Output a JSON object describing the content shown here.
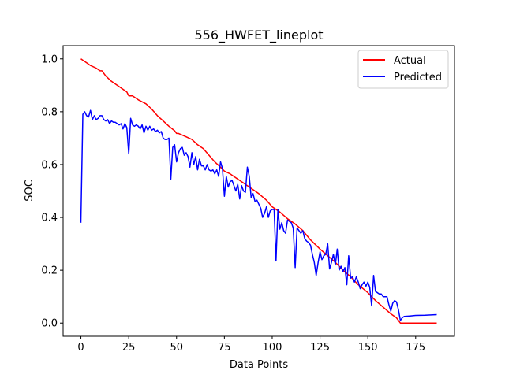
{
  "chart_data": {
    "type": "line",
    "title": "556_HWFET_lineplot",
    "xlabel": "Data Points",
    "ylabel": "SOC",
    "xlim": [
      -9.3,
      195.3
    ],
    "ylim": [
      -0.05,
      1.05
    ],
    "xticks": [
      0,
      25,
      50,
      75,
      100,
      125,
      150,
      175
    ],
    "yticks": [
      0.0,
      0.2,
      0.4,
      0.6,
      0.8,
      1.0
    ],
    "xtick_labels": [
      "0",
      "25",
      "50",
      "75",
      "100",
      "125",
      "150",
      "175"
    ],
    "ytick_labels": [
      "0.0",
      "0.2",
      "0.4",
      "0.6",
      "0.8",
      "1.0"
    ],
    "grid": false,
    "legend_position": "top-right",
    "series": [
      {
        "name": "Actual",
        "color": "#ff0000",
        "points": [
          [
            0,
            1.0
          ],
          [
            3,
            0.985
          ],
          [
            5,
            0.975
          ],
          [
            8,
            0.965
          ],
          [
            10,
            0.955
          ],
          [
            11,
            0.955
          ],
          [
            13,
            0.935
          ],
          [
            16,
            0.915
          ],
          [
            20,
            0.895
          ],
          [
            24,
            0.875
          ],
          [
            25,
            0.86
          ],
          [
            27,
            0.86
          ],
          [
            30,
            0.845
          ],
          [
            34,
            0.83
          ],
          [
            37,
            0.81
          ],
          [
            40,
            0.785
          ],
          [
            43,
            0.765
          ],
          [
            46,
            0.745
          ],
          [
            49,
            0.728
          ],
          [
            50,
            0.718
          ],
          [
            51,
            0.718
          ],
          [
            55,
            0.705
          ],
          [
            58,
            0.695
          ],
          [
            61,
            0.675
          ],
          [
            64,
            0.66
          ],
          [
            67,
            0.635
          ],
          [
            70,
            0.61
          ],
          [
            73,
            0.59
          ],
          [
            75,
            0.575
          ],
          [
            78,
            0.565
          ],
          [
            81,
            0.55
          ],
          [
            85,
            0.53
          ],
          [
            89,
            0.51
          ],
          [
            93,
            0.49
          ],
          [
            97,
            0.465
          ],
          [
            100,
            0.44
          ],
          [
            104,
            0.42
          ],
          [
            108,
            0.395
          ],
          [
            112,
            0.375
          ],
          [
            116,
            0.35
          ],
          [
            120,
            0.315
          ],
          [
            125,
            0.28
          ],
          [
            129,
            0.255
          ],
          [
            133,
            0.23
          ],
          [
            137,
            0.2
          ],
          [
            141,
            0.175
          ],
          [
            145,
            0.145
          ],
          [
            150,
            0.115
          ],
          [
            154,
            0.085
          ],
          [
            158,
            0.06
          ],
          [
            162,
            0.035
          ],
          [
            165,
            0.02
          ],
          [
            167,
            0.0
          ],
          [
            186,
            0.0
          ]
        ]
      },
      {
        "name": "Predicted",
        "color": "#0000ff",
        "points": [
          [
            0,
            0.38
          ],
          [
            1,
            0.79
          ],
          [
            2,
            0.8
          ],
          [
            3,
            0.785
          ],
          [
            4,
            0.78
          ],
          [
            5,
            0.805
          ],
          [
            6,
            0.77
          ],
          [
            7,
            0.785
          ],
          [
            8,
            0.77
          ],
          [
            9,
            0.775
          ],
          [
            10,
            0.785
          ],
          [
            11,
            0.785
          ],
          [
            12,
            0.77
          ],
          [
            13,
            0.765
          ],
          [
            14,
            0.77
          ],
          [
            15,
            0.755
          ],
          [
            16,
            0.765
          ],
          [
            17,
            0.76
          ],
          [
            18,
            0.76
          ],
          [
            19,
            0.755
          ],
          [
            20,
            0.75
          ],
          [
            21,
            0.755
          ],
          [
            22,
            0.735
          ],
          [
            23,
            0.755
          ],
          [
            24,
            0.74
          ],
          [
            25,
            0.64
          ],
          [
            26,
            0.775
          ],
          [
            27,
            0.75
          ],
          [
            28,
            0.745
          ],
          [
            29,
            0.75
          ],
          [
            30,
            0.745
          ],
          [
            31,
            0.735
          ],
          [
            32,
            0.75
          ],
          [
            33,
            0.72
          ],
          [
            34,
            0.745
          ],
          [
            35,
            0.73
          ],
          [
            36,
            0.745
          ],
          [
            37,
            0.73
          ],
          [
            38,
            0.735
          ],
          [
            39,
            0.725
          ],
          [
            40,
            0.73
          ],
          [
            41,
            0.72
          ],
          [
            42,
            0.725
          ],
          [
            43,
            0.7
          ],
          [
            44,
            0.695
          ],
          [
            45,
            0.695
          ],
          [
            46,
            0.7
          ],
          [
            47,
            0.545
          ],
          [
            48,
            0.665
          ],
          [
            49,
            0.675
          ],
          [
            50,
            0.61
          ],
          [
            51,
            0.645
          ],
          [
            52,
            0.66
          ],
          [
            53,
            0.665
          ],
          [
            54,
            0.635
          ],
          [
            55,
            0.645
          ],
          [
            56,
            0.63
          ],
          [
            57,
            0.59
          ],
          [
            58,
            0.645
          ],
          [
            59,
            0.6
          ],
          [
            60,
            0.63
          ],
          [
            61,
            0.58
          ],
          [
            62,
            0.62
          ],
          [
            63,
            0.595
          ],
          [
            64,
            0.595
          ],
          [
            65,
            0.58
          ],
          [
            66,
            0.6
          ],
          [
            67,
            0.58
          ],
          [
            68,
            0.575
          ],
          [
            69,
            0.58
          ],
          [
            70,
            0.565
          ],
          [
            71,
            0.58
          ],
          [
            72,
            0.555
          ],
          [
            73,
            0.61
          ],
          [
            74,
            0.585
          ],
          [
            75,
            0.48
          ],
          [
            76,
            0.555
          ],
          [
            77,
            0.515
          ],
          [
            78,
            0.535
          ],
          [
            79,
            0.54
          ],
          [
            80,
            0.52
          ],
          [
            81,
            0.5
          ],
          [
            82,
            0.525
          ],
          [
            83,
            0.47
          ],
          [
            84,
            0.52
          ],
          [
            85,
            0.5
          ],
          [
            86,
            0.495
          ],
          [
            87,
            0.59
          ],
          [
            88,
            0.555
          ],
          [
            89,
            0.475
          ],
          [
            90,
            0.49
          ],
          [
            91,
            0.46
          ],
          [
            92,
            0.465
          ],
          [
            93,
            0.45
          ],
          [
            94,
            0.435
          ],
          [
            95,
            0.4
          ],
          [
            96,
            0.415
          ],
          [
            97,
            0.44
          ],
          [
            98,
            0.4
          ],
          [
            99,
            0.425
          ],
          [
            100,
            0.43
          ],
          [
            101,
            0.43
          ],
          [
            102,
            0.235
          ],
          [
            103,
            0.43
          ],
          [
            104,
            0.355
          ],
          [
            105,
            0.38
          ],
          [
            106,
            0.35
          ],
          [
            107,
            0.34
          ],
          [
            108,
            0.39
          ],
          [
            109,
            0.385
          ],
          [
            110,
            0.38
          ],
          [
            111,
            0.36
          ],
          [
            112,
            0.21
          ],
          [
            113,
            0.36
          ],
          [
            114,
            0.35
          ],
          [
            115,
            0.34
          ],
          [
            116,
            0.35
          ],
          [
            117,
            0.32
          ],
          [
            118,
            0.31
          ],
          [
            119,
            0.305
          ],
          [
            120,
            0.295
          ],
          [
            121,
            0.26
          ],
          [
            122,
            0.23
          ],
          [
            123,
            0.18
          ],
          [
            124,
            0.23
          ],
          [
            125,
            0.27
          ],
          [
            126,
            0.24
          ],
          [
            127,
            0.255
          ],
          [
            128,
            0.26
          ],
          [
            129,
            0.3
          ],
          [
            130,
            0.205
          ],
          [
            131,
            0.23
          ],
          [
            132,
            0.26
          ],
          [
            133,
            0.22
          ],
          [
            134,
            0.28
          ],
          [
            135,
            0.2
          ],
          [
            136,
            0.215
          ],
          [
            137,
            0.195
          ],
          [
            138,
            0.21
          ],
          [
            139,
            0.145
          ],
          [
            140,
            0.255
          ],
          [
            141,
            0.17
          ],
          [
            142,
            0.175
          ],
          [
            143,
            0.155
          ],
          [
            144,
            0.175
          ],
          [
            145,
            0.155
          ],
          [
            146,
            0.13
          ],
          [
            147,
            0.145
          ],
          [
            148,
            0.155
          ],
          [
            149,
            0.14
          ],
          [
            150,
            0.155
          ],
          [
            151,
            0.135
          ],
          [
            152,
            0.065
          ],
          [
            153,
            0.18
          ],
          [
            154,
            0.12
          ],
          [
            155,
            0.115
          ],
          [
            156,
            0.11
          ],
          [
            157,
            0.11
          ],
          [
            158,
            0.1
          ],
          [
            159,
            0.1
          ],
          [
            160,
            0.1
          ],
          [
            161,
            0.07
          ],
          [
            162,
            0.045
          ],
          [
            163,
            0.075
          ],
          [
            164,
            0.085
          ],
          [
            165,
            0.08
          ],
          [
            166,
            0.05
          ],
          [
            167,
            0.01
          ],
          [
            168,
            0.02
          ],
          [
            169,
            0.025
          ],
          [
            172,
            0.027
          ],
          [
            175,
            0.029
          ],
          [
            180,
            0.03
          ],
          [
            186,
            0.032
          ]
        ]
      }
    ]
  }
}
